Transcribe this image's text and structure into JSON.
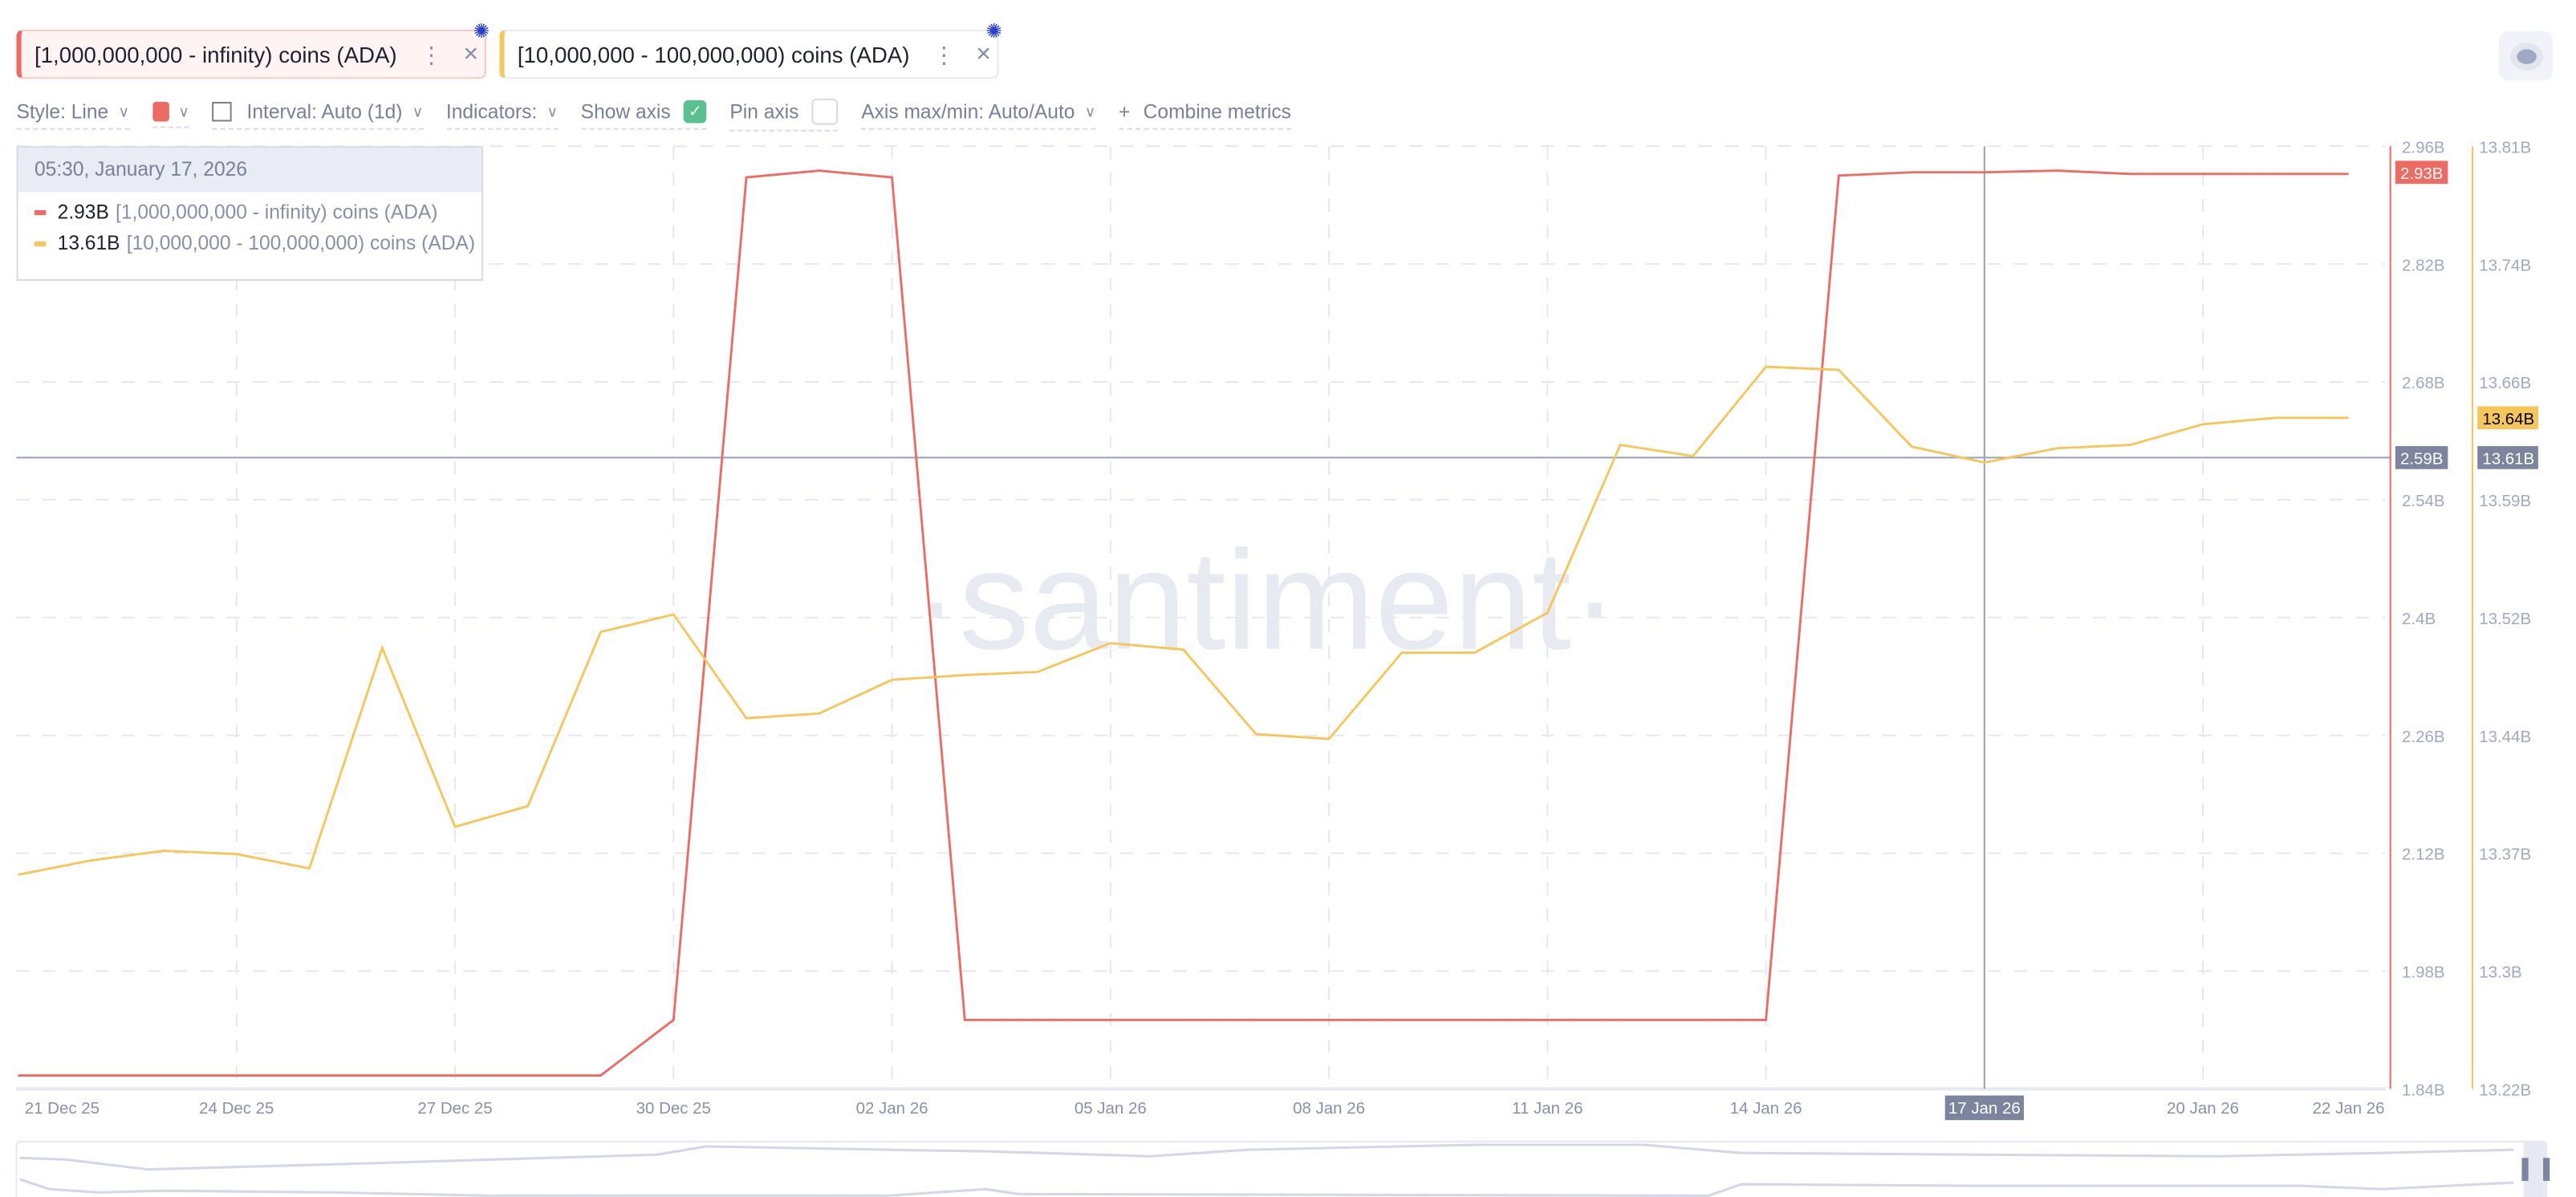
{
  "tabs": [
    {
      "label": "[1,000,000,000 - infinity) coins (ADA)",
      "color": "#ee6a62",
      "more_icon": "more-vertical-icon",
      "close_icon": "close-icon"
    },
    {
      "label": "[10,000,000 - 100,000,000) coins (ADA)",
      "color": "#f6c65b",
      "more_icon": "more-vertical-icon",
      "close_icon": "close-icon"
    }
  ],
  "toolbar": {
    "style": "Style: Line",
    "interval": "Interval: Auto (1d)",
    "indicators": "Indicators:",
    "show_axis": "Show axis",
    "show_axis_checked": true,
    "pin_axis": "Pin axis",
    "pin_axis_checked": false,
    "axis_minmax": "Axis max/min: Auto/Auto",
    "combine": "Combine metrics",
    "color_swatch": "#ee6a62"
  },
  "tooltip": {
    "date": "05:30, January 17, 2026",
    "rows": [
      {
        "value": "2.93B",
        "label": "[1,000,000,000 - infinity) coins (ADA)",
        "color": "#ee6a62"
      },
      {
        "value": "13.61B",
        "label": "[10,000,000 - 100,000,000) coins (ADA)",
        "color": "#f6c65b"
      }
    ]
  },
  "watermark": "·santiment·",
  "chart_data": {
    "type": "line",
    "x": [
      "21 Dec 25",
      "22 Dec 25",
      "23 Dec 25",
      "24 Dec 25",
      "25 Dec 25",
      "26 Dec 25",
      "27 Dec 25",
      "28 Dec 25",
      "29 Dec 25",
      "30 Dec 25",
      "31 Dec 25",
      "01 Jan 26",
      "02 Jan 26",
      "03 Jan 26",
      "04 Jan 26",
      "05 Jan 26",
      "06 Jan 26",
      "07 Jan 26",
      "08 Jan 26",
      "09 Jan 26",
      "10 Jan 26",
      "11 Jan 26",
      "12 Jan 26",
      "13 Jan 26",
      "14 Jan 26",
      "15 Jan 26",
      "16 Jan 26",
      "17 Jan 26",
      "18 Jan 26",
      "19 Jan 26",
      "20 Jan 26",
      "21 Jan 26",
      "22 Jan 26"
    ],
    "x_ticks": [
      "21 Dec 25",
      "24 Dec 25",
      "27 Dec 25",
      "30 Dec 25",
      "02 Jan 26",
      "05 Jan 26",
      "08 Jan 26",
      "11 Jan 26",
      "14 Jan 26",
      "17 Jan 26",
      "20 Jan 26",
      "22 Jan 26"
    ],
    "series": [
      {
        "name": "[1,000,000,000 - infinity) coins (ADA)",
        "axis": "left",
        "color": "#ee6a62",
        "values": [
          1.856,
          1.856,
          1.856,
          1.856,
          1.856,
          1.856,
          1.856,
          1.856,
          1.856,
          1.922,
          2.923,
          2.931,
          2.923,
          1.922,
          1.922,
          1.922,
          1.922,
          1.922,
          1.922,
          1.922,
          1.922,
          1.922,
          1.922,
          1.922,
          1.922,
          2.925,
          2.929,
          2.929,
          2.931,
          2.927,
          2.927,
          2.927,
          2.927
        ]
      },
      {
        "name": "[10,000,000 - 100,000,000) coins (ADA)",
        "axis": "right",
        "color": "#f6c65b",
        "values": [
          13.354,
          13.363,
          13.369,
          13.367,
          13.358,
          13.496,
          13.384,
          13.397,
          13.506,
          13.517,
          13.452,
          13.455,
          13.476,
          13.479,
          13.481,
          13.499,
          13.495,
          13.442,
          13.439,
          13.493,
          13.493,
          13.518,
          13.623,
          13.616,
          13.672,
          13.67,
          13.622,
          13.612,
          13.621,
          13.623,
          13.636,
          13.64,
          13.64
        ]
      }
    ],
    "left_axis": {
      "range": [
        1.84,
        2.96
      ],
      "ticks": [
        "2.96B",
        "2.82B",
        "2.68B",
        "2.54B",
        "2.4B",
        "2.26B",
        "2.12B",
        "1.98B",
        "1.84B"
      ],
      "current": "2.93B",
      "crosshair": "2.59B"
    },
    "right_axis": {
      "range": [
        13.22,
        13.81
      ],
      "ticks": [
        "13.81B",
        "13.74B",
        "13.66B",
        "13.59B",
        "13.52B",
        "13.44B",
        "13.37B",
        "13.3B",
        "13.22B"
      ],
      "current": "13.64B",
      "crosshair": "13.61B"
    },
    "crosshair_x": "17 Jan 26",
    "crosshair_left_value": 2.59,
    "grid": true
  }
}
